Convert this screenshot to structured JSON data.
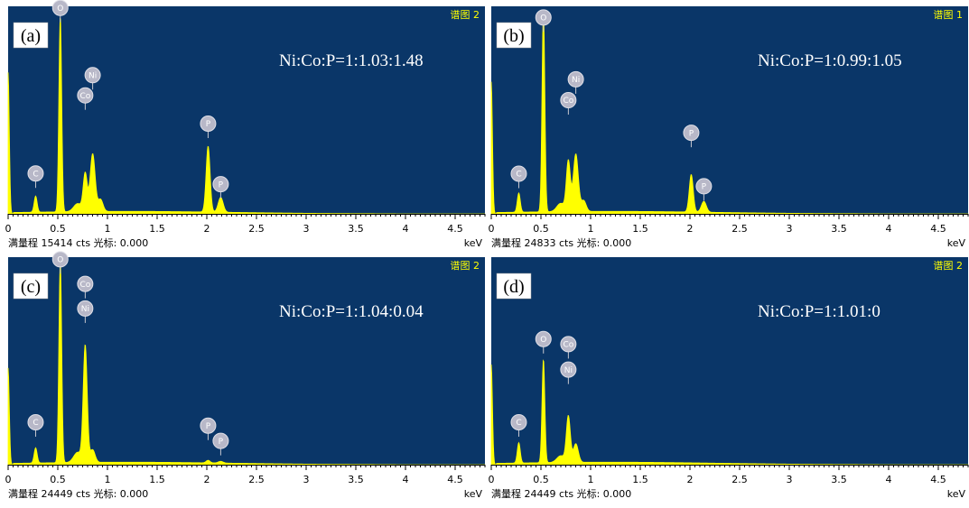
{
  "common": {
    "full_scale_label": "满量程",
    "cts_unit": "cts",
    "cursor_label": "光标:",
    "cursor_value": "0.000",
    "x_unit": "keV",
    "x_ticks": [
      "0",
      "0.5",
      "1",
      "1.5",
      "2",
      "2.5",
      "3",
      "3.5",
      "4",
      "4.5"
    ],
    "colors": {
      "plot_bg": "#0a3668",
      "spectrum": "#ffff00",
      "spectrum_id": "#ffff00",
      "marker": "#b8b8c8"
    }
  },
  "chart_data": [
    {
      "type": "area",
      "panel_label": "(a)",
      "spectrum_id": "谱图 2",
      "ratio_text": "Ni:Co:P=1:1.03:1.48",
      "full_scale_cts": "15414",
      "xlim": [
        0,
        4.8
      ],
      "ylim": [
        0,
        15414
      ],
      "peaks": [
        {
          "x": 0.0,
          "y": 10500,
          "w": 0.012
        },
        {
          "x": 0.277,
          "y": 1200,
          "w": 0.015
        },
        {
          "x": 0.525,
          "y": 14600,
          "w": 0.014
        },
        {
          "x": 0.7,
          "y": 600,
          "w": 0.04
        },
        {
          "x": 0.776,
          "y": 2800,
          "w": 0.02
        },
        {
          "x": 0.851,
          "y": 4300,
          "w": 0.025
        },
        {
          "x": 0.93,
          "y": 900,
          "w": 0.025
        },
        {
          "x": 2.013,
          "y": 4900,
          "w": 0.02
        },
        {
          "x": 2.14,
          "y": 1100,
          "w": 0.025
        }
      ],
      "markers": [
        {
          "element": "C",
          "x": 0.277,
          "y": 3000
        },
        {
          "element": "O",
          "x": 0.525,
          "y": 15300
        },
        {
          "element": "Co",
          "x": 0.776,
          "y": 8800
        },
        {
          "element": "Ni",
          "x": 0.851,
          "y": 10300
        },
        {
          "element": "P",
          "x": 2.013,
          "y": 6700
        },
        {
          "element": "P",
          "x": 2.14,
          "y": 2200
        }
      ]
    },
    {
      "type": "area",
      "panel_label": "(b)",
      "spectrum_id": "谱图 1",
      "ratio_text": "Ni:Co:P=1:0.99:1.05",
      "full_scale_cts": "24833",
      "xlim": [
        0,
        4.8
      ],
      "ylim": [
        0,
        24833
      ],
      "peaks": [
        {
          "x": 0.0,
          "y": 15800,
          "w": 0.012
        },
        {
          "x": 0.277,
          "y": 2300,
          "w": 0.015
        },
        {
          "x": 0.525,
          "y": 24400,
          "w": 0.014
        },
        {
          "x": 0.7,
          "y": 1000,
          "w": 0.04
        },
        {
          "x": 0.776,
          "y": 6000,
          "w": 0.02
        },
        {
          "x": 0.851,
          "y": 6900,
          "w": 0.025
        },
        {
          "x": 0.93,
          "y": 1300,
          "w": 0.025
        },
        {
          "x": 2.013,
          "y": 4500,
          "w": 0.02
        },
        {
          "x": 2.14,
          "y": 1300,
          "w": 0.025
        }
      ],
      "markers": [
        {
          "element": "C",
          "x": 0.277,
          "y": 4800
        },
        {
          "element": "O",
          "x": 0.525,
          "y": 23500
        },
        {
          "element": "Co",
          "x": 0.776,
          "y": 13600
        },
        {
          "element": "Ni",
          "x": 0.851,
          "y": 16100
        },
        {
          "element": "P",
          "x": 2.013,
          "y": 9700
        },
        {
          "element": "P",
          "x": 2.14,
          "y": 3300
        }
      ]
    },
    {
      "type": "area",
      "panel_label": "(c)",
      "spectrum_id": "谱图 2",
      "ratio_text": "Ni:Co:P=1:1.04:0.04",
      "full_scale_cts": "24449",
      "xlim": [
        0,
        4.8
      ],
      "ylim": [
        0,
        24449
      ],
      "peaks": [
        {
          "x": 0.0,
          "y": 11400,
          "w": 0.012
        },
        {
          "x": 0.277,
          "y": 1800,
          "w": 0.015
        },
        {
          "x": 0.525,
          "y": 24000,
          "w": 0.014
        },
        {
          "x": 0.7,
          "y": 1200,
          "w": 0.04
        },
        {
          "x": 0.776,
          "y": 13700,
          "w": 0.02
        },
        {
          "x": 0.85,
          "y": 1500,
          "w": 0.025
        },
        {
          "x": 2.013,
          "y": 300,
          "w": 0.02
        },
        {
          "x": 2.14,
          "y": 200,
          "w": 0.025
        }
      ],
      "markers": [
        {
          "element": "C",
          "x": 0.277,
          "y": 5000
        },
        {
          "element": "O",
          "x": 0.525,
          "y": 24200
        },
        {
          "element": "Co",
          "x": 0.776,
          "y": 21300
        },
        {
          "element": "Ni",
          "x": 0.776,
          "y": 18400
        },
        {
          "element": "P",
          "x": 2.013,
          "y": 4600
        },
        {
          "element": "P",
          "x": 2.14,
          "y": 2800
        }
      ]
    },
    {
      "type": "area",
      "panel_label": "(d)",
      "spectrum_id": "谱图 2",
      "ratio_text": "Ni:Co:P=1:1.01:0",
      "full_scale_cts": "24449",
      "xlim": [
        0,
        4.8
      ],
      "ylim": [
        0,
        24449
      ],
      "peaks": [
        {
          "x": 0.0,
          "y": 11800,
          "w": 0.012
        },
        {
          "x": 0.277,
          "y": 2400,
          "w": 0.015
        },
        {
          "x": 0.525,
          "y": 12200,
          "w": 0.014
        },
        {
          "x": 0.7,
          "y": 800,
          "w": 0.04
        },
        {
          "x": 0.776,
          "y": 5400,
          "w": 0.02
        },
        {
          "x": 0.851,
          "y": 2200,
          "w": 0.025
        }
      ],
      "markers": [
        {
          "element": "C",
          "x": 0.277,
          "y": 5000
        },
        {
          "element": "O",
          "x": 0.525,
          "y": 14800
        },
        {
          "element": "Co",
          "x": 0.776,
          "y": 14200
        },
        {
          "element": "Ni",
          "x": 0.776,
          "y": 11200
        }
      ]
    }
  ]
}
